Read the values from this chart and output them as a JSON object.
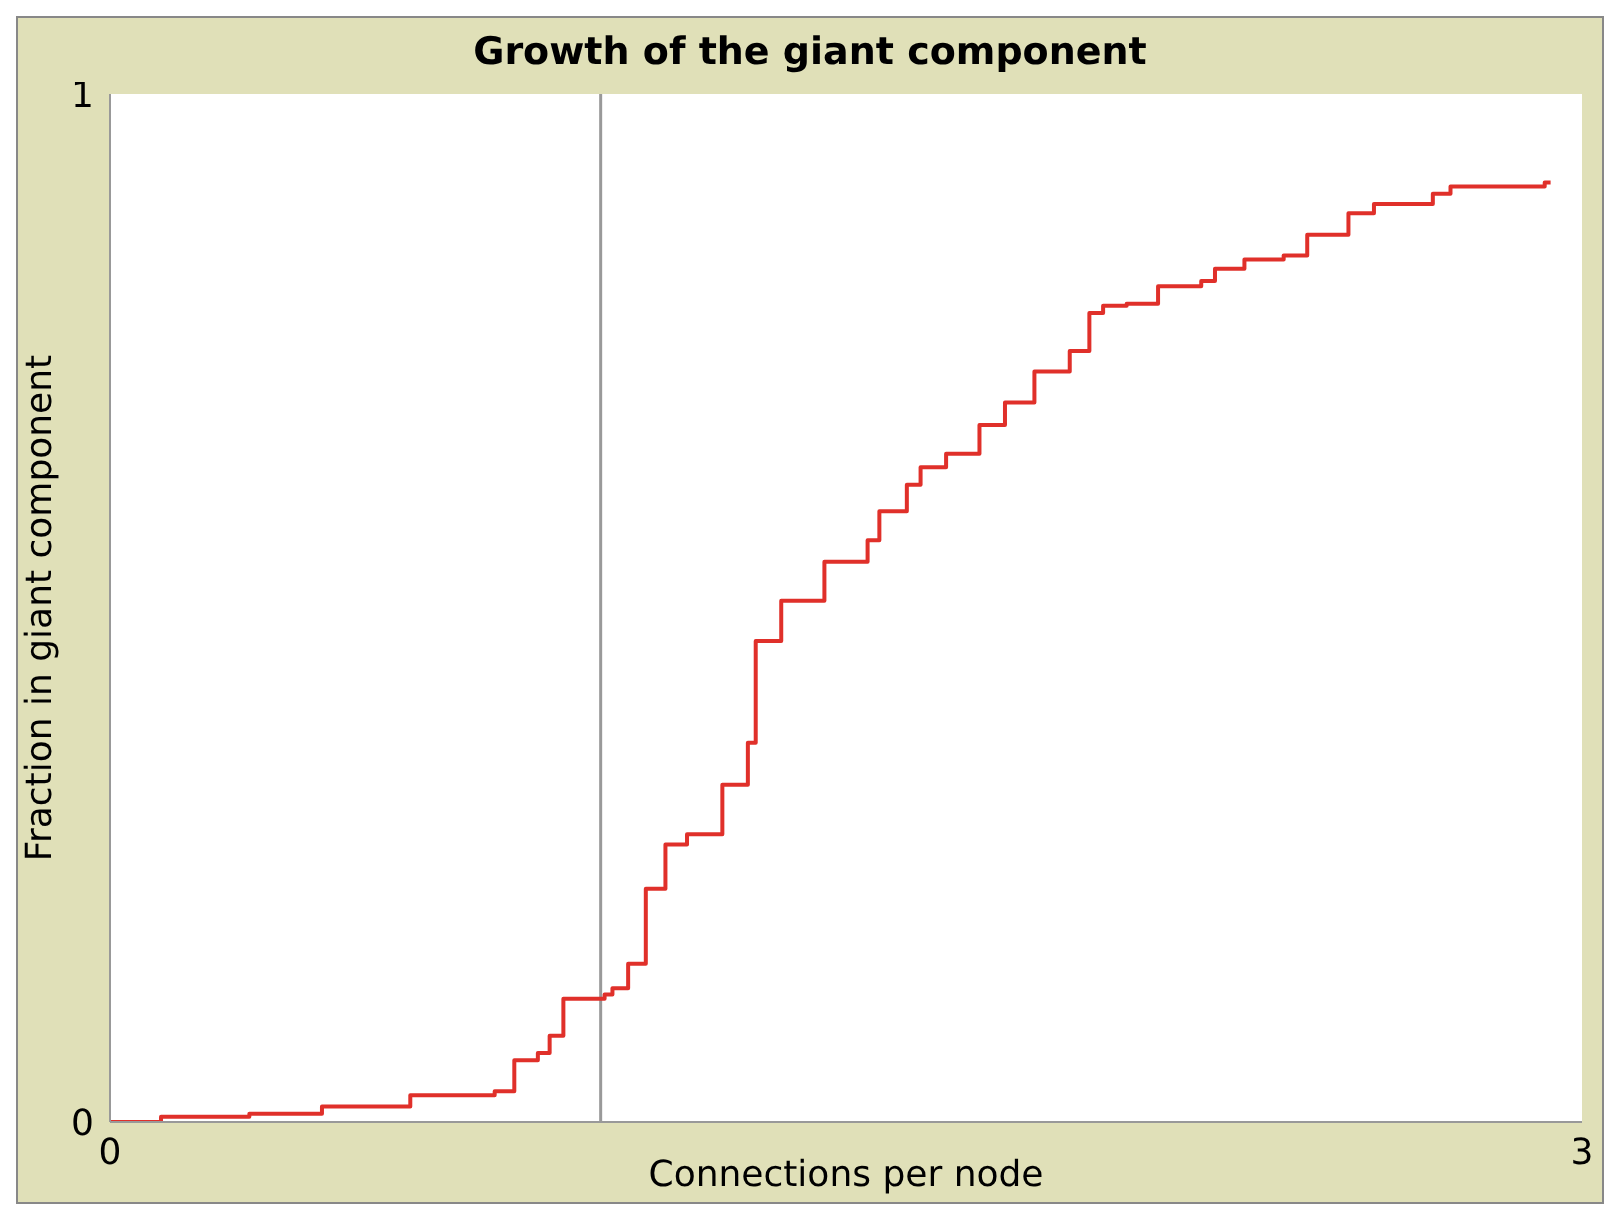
{
  "chart_data": {
    "type": "step",
    "title": "Growth of the giant component",
    "xlabel": "Connections per node",
    "ylabel": "Fraction in giant component",
    "xlim": [
      0,
      3
    ],
    "xticks": [
      0,
      3
    ],
    "ylim": [
      0,
      1
    ],
    "yticks": [
      0,
      1
    ],
    "grid": false,
    "ref_lines": [
      {
        "axis": "x",
        "value": 1,
        "color": "#999999"
      }
    ],
    "series": [
      {
        "color": "#e0302a",
        "x": [
          0,
          0.104,
          0.284,
          0.432,
          0.612,
          0.784,
          0.824,
          0.872,
          0.896,
          0.924,
          1.008,
          1.024,
          1.056,
          1.092,
          1.132,
          1.176,
          1.248,
          1.3,
          1.316,
          1.368,
          1.456,
          1.544,
          1.568,
          1.624,
          1.652,
          1.704,
          1.772,
          1.824,
          1.884,
          1.956,
          1.996,
          2.024,
          2.072,
          2.136,
          2.224,
          2.252,
          2.312,
          2.392,
          2.44,
          2.524,
          2.576,
          2.696,
          2.732,
          2.924,
          2.936
        ],
        "values": [
          0,
          0.005,
          0.008,
          0.015,
          0.026,
          0.03,
          0.06,
          0.067,
          0.084,
          0.12,
          0.124,
          0.13,
          0.154,
          0.227,
          0.27,
          0.28,
          0.328,
          0.369,
          0.468,
          0.507,
          0.545,
          0.566,
          0.594,
          0.62,
          0.637,
          0.65,
          0.678,
          0.7,
          0.73,
          0.75,
          0.787,
          0.794,
          0.796,
          0.813,
          0.818,
          0.83,
          0.839,
          0.843,
          0.863,
          0.884,
          0.893,
          0.903,
          0.91,
          0.914,
          0.914
        ]
      }
    ]
  }
}
